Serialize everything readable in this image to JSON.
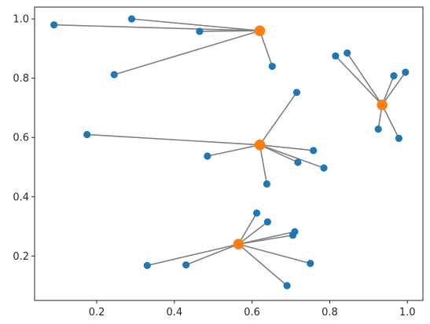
{
  "chart_data": {
    "type": "scatter",
    "title": "",
    "xlabel": "",
    "ylabel": "",
    "xlim": [
      0.04,
      1.04
    ],
    "ylim": [
      0.05,
      1.04
    ],
    "x_ticks": [
      "0.2",
      "0.4",
      "0.6",
      "0.8",
      "1.0"
    ],
    "y_ticks": [
      "0.2",
      "0.4",
      "0.6",
      "0.8",
      "1.0"
    ],
    "x_tick_values": [
      0.2,
      0.4,
      0.6,
      0.8,
      1.0
    ],
    "y_tick_values": [
      0.2,
      0.4,
      0.6,
      0.8,
      1.0
    ],
    "grid": false,
    "legend": false,
    "colors": {
      "points": "#1f77b4",
      "centers": "#ff7f0e",
      "lines": "#808080",
      "axes": "#262626"
    },
    "centers": [
      {
        "x": 0.62,
        "y": 0.96
      },
      {
        "x": 0.935,
        "y": 0.71
      },
      {
        "x": 0.62,
        "y": 0.575
      },
      {
        "x": 0.565,
        "y": 0.24
      }
    ],
    "points": [
      {
        "x": 0.09,
        "y": 0.98,
        "center": 0
      },
      {
        "x": 0.29,
        "y": 1.0,
        "center": 0
      },
      {
        "x": 0.465,
        "y": 0.958,
        "center": 0
      },
      {
        "x": 0.245,
        "y": 0.812,
        "center": 0
      },
      {
        "x": 0.652,
        "y": 0.84,
        "center": 0
      },
      {
        "x": 0.815,
        "y": 0.875,
        "center": 1
      },
      {
        "x": 0.845,
        "y": 0.885,
        "center": 1
      },
      {
        "x": 0.965,
        "y": 0.808,
        "center": 1
      },
      {
        "x": 0.995,
        "y": 0.82,
        "center": 1
      },
      {
        "x": 0.925,
        "y": 0.628,
        "center": 1
      },
      {
        "x": 0.978,
        "y": 0.597,
        "center": 1
      },
      {
        "x": 0.175,
        "y": 0.61,
        "center": 2
      },
      {
        "x": 0.715,
        "y": 0.752,
        "center": 2
      },
      {
        "x": 0.758,
        "y": 0.556,
        "center": 2
      },
      {
        "x": 0.485,
        "y": 0.537,
        "center": 2
      },
      {
        "x": 0.718,
        "y": 0.516,
        "center": 2
      },
      {
        "x": 0.785,
        "y": 0.497,
        "center": 2
      },
      {
        "x": 0.638,
        "y": 0.443,
        "center": 2
      },
      {
        "x": 0.612,
        "y": 0.345,
        "center": 3
      },
      {
        "x": 0.64,
        "y": 0.315,
        "center": 3
      },
      {
        "x": 0.71,
        "y": 0.282,
        "center": 3
      },
      {
        "x": 0.705,
        "y": 0.27,
        "center": 3
      },
      {
        "x": 0.75,
        "y": 0.175,
        "center": 3
      },
      {
        "x": 0.43,
        "y": 0.17,
        "center": 3
      },
      {
        "x": 0.33,
        "y": 0.168,
        "center": 3
      },
      {
        "x": 0.69,
        "y": 0.1,
        "center": 3
      }
    ]
  }
}
